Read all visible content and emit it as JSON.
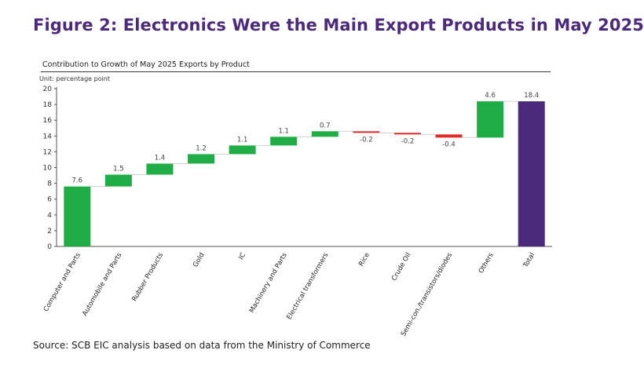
{
  "figure_title": "Figure 2: Electronics Were the Main Export Products in May 2025",
  "source": "Source: SCB EIC analysis based on data from the Ministry of Commerce",
  "colors": {
    "positive": "#1fae45",
    "negative": "#e02a2a",
    "total": "#4b2a7b",
    "title": "#4b2a7b"
  },
  "chart_data": {
    "type": "bar",
    "subtype": "waterfall",
    "title": "Contribution to Growth of May 2025 Exports by Product",
    "unit_label": "Unit: percentage point",
    "xlabel": "",
    "ylabel": "",
    "ylim": [
      0,
      20
    ],
    "yticks": [
      0,
      2,
      4,
      6,
      8,
      10,
      12,
      14,
      16,
      18,
      20
    ],
    "grid": false,
    "categories": [
      "Computer and Parts",
      "Automobile and Parts",
      "Rubber Products",
      "Gold",
      "IC",
      "Machinery and Parts",
      "Electrical transformers",
      "Rice",
      "Crude Oil",
      "Semi-con./transistors/diodes",
      "Others",
      "Total"
    ],
    "values": [
      7.6,
      1.5,
      1.4,
      1.2,
      1.1,
      1.1,
      0.7,
      -0.2,
      -0.2,
      -0.4,
      4.6,
      18.4
    ],
    "labels": [
      "7.6",
      "1.5",
      "1.4",
      "1.2",
      "1.1",
      "1.1",
      "0.7",
      "-0.2",
      "-0.2",
      "-0.4",
      "4.6",
      "18.4"
    ],
    "is_total": [
      false,
      false,
      false,
      false,
      false,
      false,
      false,
      false,
      false,
      false,
      false,
      true
    ]
  }
}
